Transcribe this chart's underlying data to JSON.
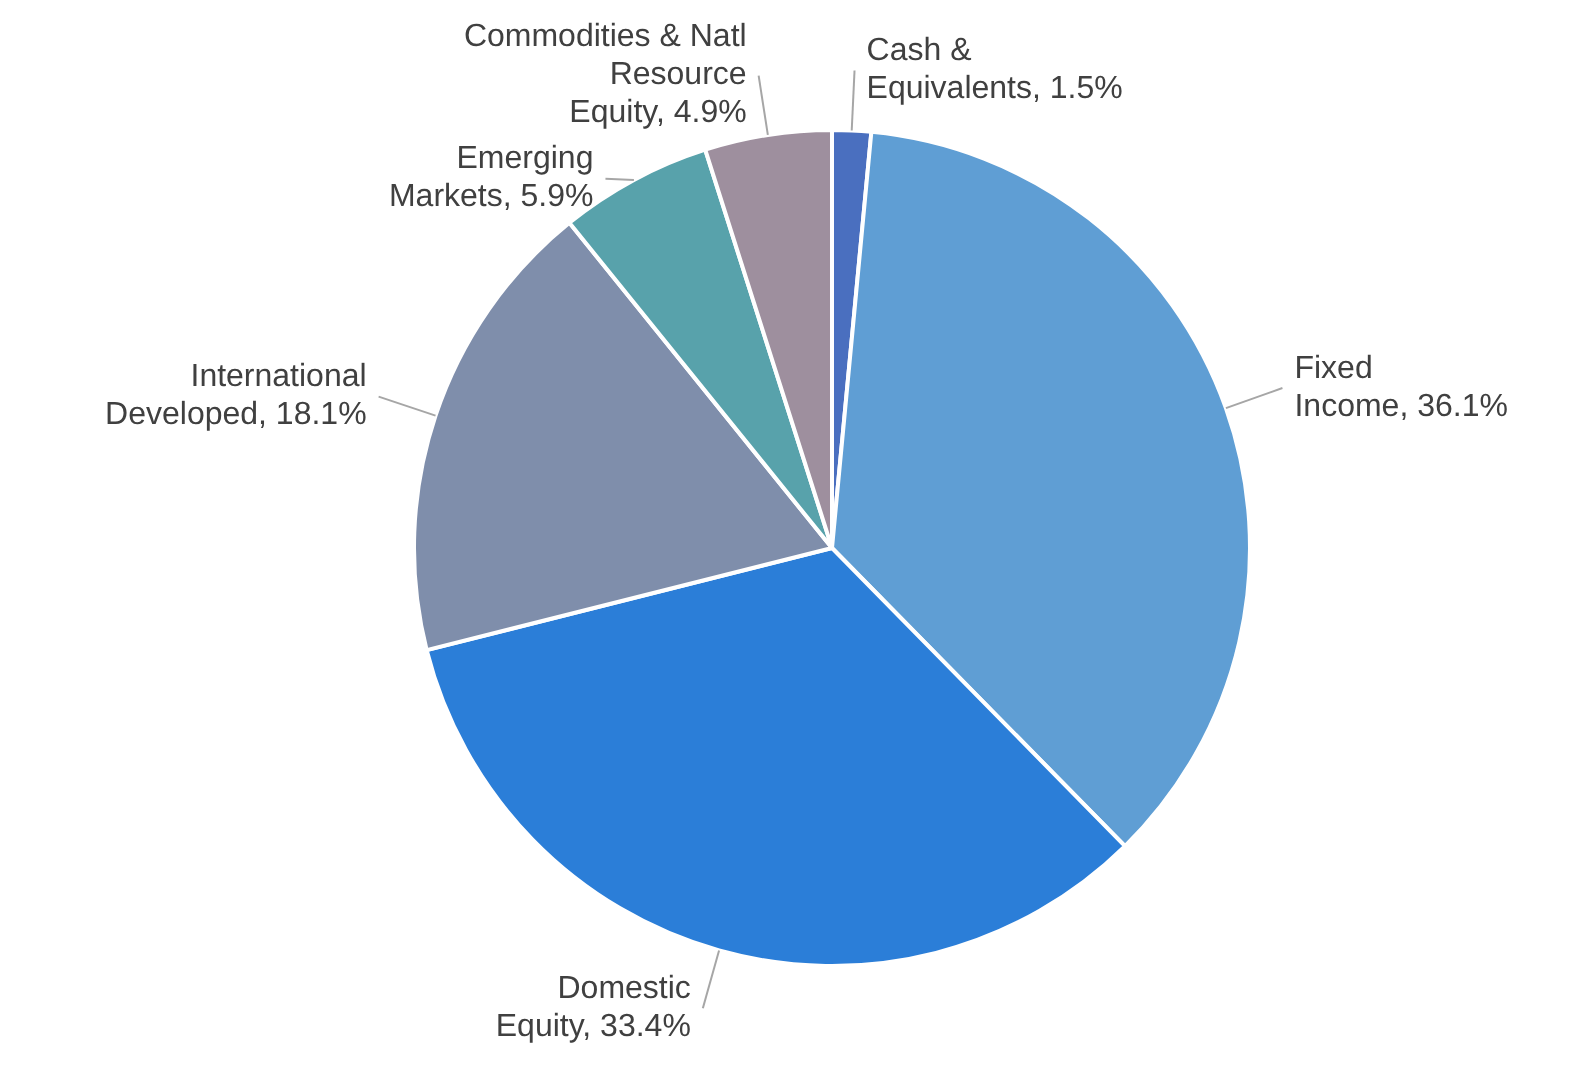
{
  "chart_data": {
    "type": "pie",
    "categories": [
      "Cash & Equivalents",
      "Fixed Income",
      "Domestic Equity",
      "International Developed",
      "Emerging Markets",
      "Commodities & Natl Resource Equity"
    ],
    "values": [
      1.5,
      36.1,
      33.4,
      18.1,
      5.9,
      4.9
    ],
    "colors": [
      "#4a6fbf",
      "#5f9ed4",
      "#2b7ed8",
      "#7f8eab",
      "#58a2ab",
      "#9e8f9e"
    ],
    "value_labels": [
      "1.5%",
      "36.1%",
      "33.4%",
      "18.1%",
      "5.9%",
      "4.9%"
    ],
    "legend": false
  }
}
